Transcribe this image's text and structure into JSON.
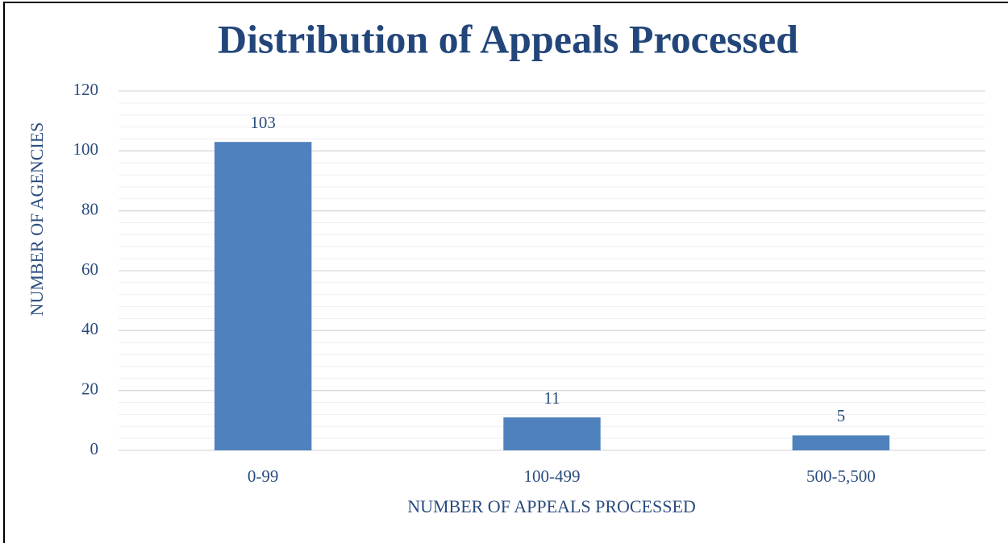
{
  "chart_data": {
    "type": "bar",
    "title": "Distribution of Appeals Processed",
    "x_label": "NUMBER OF APPEALS PROCESSED",
    "y_label": "NUMBER OF AGENCIES",
    "categories": [
      "0-99",
      "100-499",
      "500-5,500"
    ],
    "values": [
      103,
      11,
      5
    ],
    "color": "#4f81bd",
    "ylim": [
      0,
      120
    ],
    "yticks": [
      0,
      20,
      40,
      60,
      80,
      100,
      120
    ],
    "yminorticks": [
      4,
      8,
      12,
      16,
      24,
      28,
      32,
      36,
      44,
      48,
      52,
      56,
      64,
      68,
      72,
      76,
      84,
      88,
      92,
      96,
      104,
      108,
      112,
      116
    ],
    "grid": true,
    "data_labels": true
  }
}
